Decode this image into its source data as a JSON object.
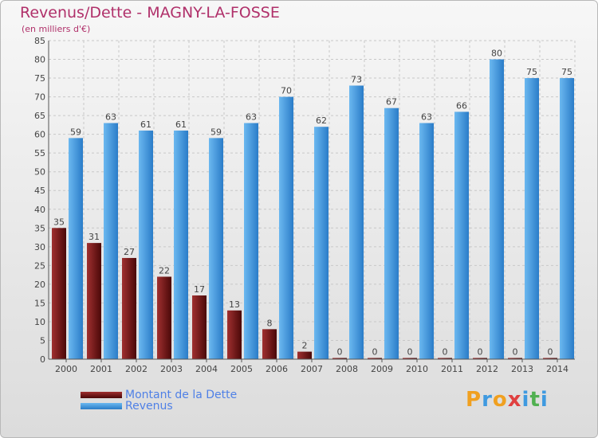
{
  "chart_data": {
    "type": "bar",
    "title": "Revenus/Dette - MAGNY-LA-FOSSE",
    "subtitle": "(en milliers d'€)",
    "categories": [
      "2000",
      "2001",
      "2002",
      "2003",
      "2004",
      "2005",
      "2006",
      "2007",
      "2008",
      "2009",
      "2010",
      "2011",
      "2012",
      "2013",
      "2014"
    ],
    "series": [
      {
        "name": "Montant de la Dette",
        "color": "#7a1a1a",
        "values": [
          35,
          31,
          27,
          22,
          17,
          13,
          8,
          2,
          0,
          0,
          0,
          0,
          0,
          0,
          0
        ]
      },
      {
        "name": "Revenus",
        "color": "#3f9ae0",
        "values": [
          59,
          63,
          61,
          61,
          59,
          63,
          70,
          62,
          73,
          67,
          63,
          66,
          80,
          75,
          75
        ]
      }
    ],
    "ylim": [
      0,
      85
    ],
    "yticks": [
      0,
      5,
      10,
      15,
      20,
      25,
      30,
      35,
      40,
      45,
      50,
      55,
      60,
      65,
      70,
      75,
      80,
      85
    ],
    "grid": true,
    "legend_position": "bottom-left"
  },
  "legend": [
    {
      "label": "Montant de la Dette",
      "color": "#7a1a1a"
    },
    {
      "label": "Revenus",
      "color": "#3f9ae0"
    }
  ],
  "logo": {
    "letters": [
      "P",
      "r",
      "o",
      "x",
      "i",
      "t",
      "i"
    ],
    "colors": [
      "#f0a020",
      "#3f9ae0",
      "#f0a020",
      "#e04040",
      "#3f9ae0",
      "#50b050",
      "#3f9ae0"
    ]
  }
}
